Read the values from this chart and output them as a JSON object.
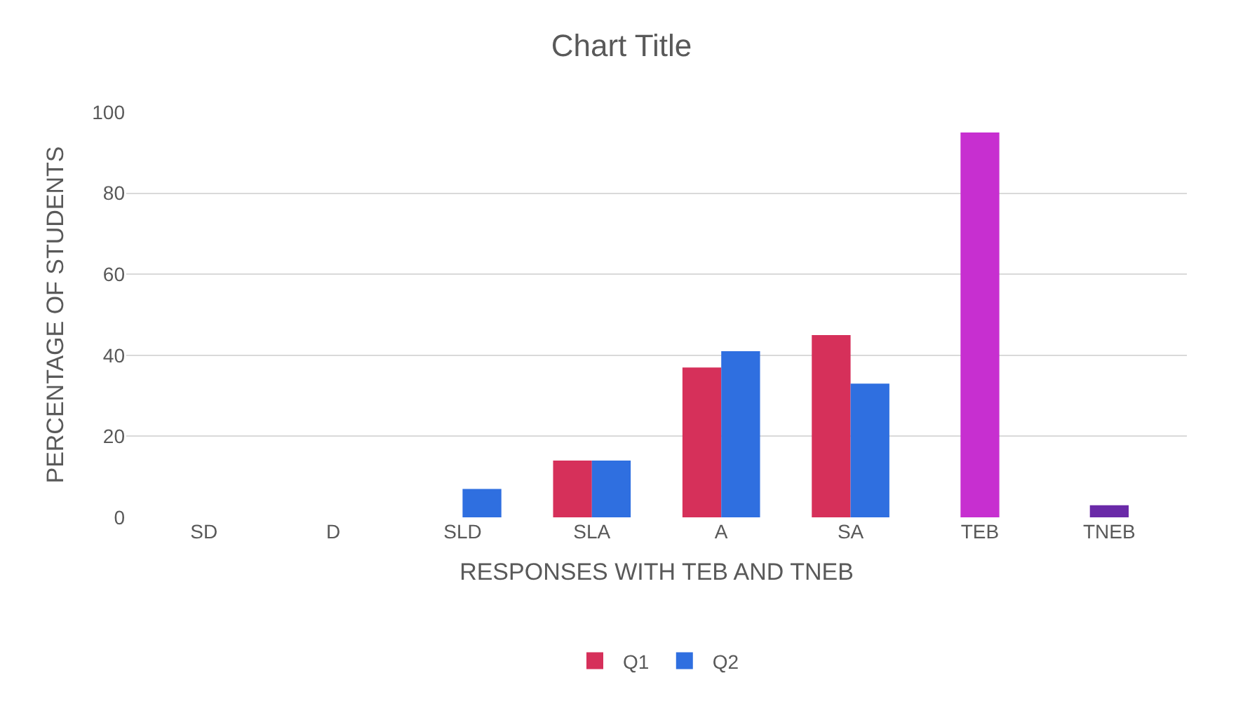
{
  "chart_data": {
    "type": "bar",
    "title": "Chart Title",
    "xlabel": "RESPONSES WITH TEB AND TNEB",
    "ylabel": "PERCENTAGE OF STUDENTS",
    "categories": [
      "SD",
      "D",
      "SLD",
      "SLA",
      "A",
      "SA",
      "TEB",
      "TNEB"
    ],
    "series": [
      {
        "name": "Q1",
        "color": "#d6305a",
        "values": [
          0,
          0,
          0,
          14,
          37,
          45,
          null,
          null
        ]
      },
      {
        "name": "Q2",
        "color": "#2f6fe0",
        "values": [
          0,
          0,
          7,
          14,
          41,
          33,
          null,
          null
        ]
      },
      {
        "colors": [
          "#c72fd0",
          "#c72fd0",
          "#c72fd0",
          "#c72fd0",
          "#c72fd0",
          "#c72fd0",
          "#c72fd0",
          "#6a2aa8"
        ],
        "values": [
          null,
          null,
          null,
          null,
          null,
          null,
          95,
          3
        ]
      }
    ],
    "ylim": [
      0,
      100
    ],
    "yticks": [
      0,
      20,
      40,
      60,
      80,
      100
    ],
    "grid": "y",
    "legend": "bottom"
  }
}
